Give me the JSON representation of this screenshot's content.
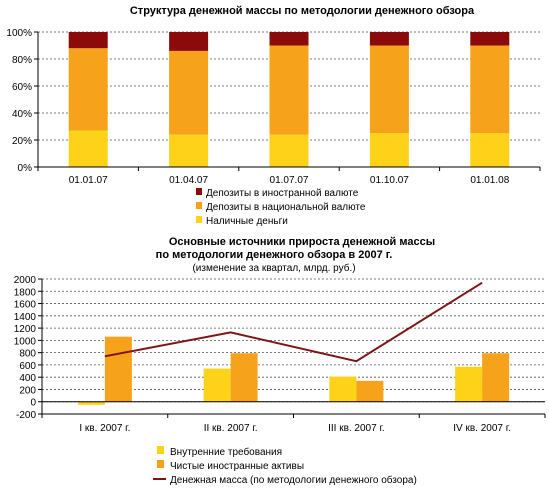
{
  "colors": {
    "foreign_deposits": "#8B0A0A",
    "national_deposits": "#F7A21B",
    "cash": "#FFD21A",
    "domestic_claims": "#FFD21A",
    "net_foreign_assets": "#F7A21B",
    "money_supply": "#7F1417",
    "grid": "#555555",
    "axis": "#000000"
  },
  "chart_data": [
    {
      "type": "bar",
      "stacked": true,
      "title": "Структура денежной массы по методологии денежного обзора",
      "categories": [
        "01.01.07",
        "01.04.07",
        "01.07.07",
        "01.10.07",
        "01.01.08"
      ],
      "series": [
        {
          "name": "Наличные деньги",
          "values": [
            27,
            24,
            24,
            25,
            25
          ]
        },
        {
          "name": "Депозиты в национальной валюте",
          "values": [
            61,
            62,
            66,
            65,
            65
          ]
        },
        {
          "name": "Депозиты в иностранной валюте",
          "values": [
            12,
            14,
            10,
            10,
            10
          ]
        }
      ],
      "legend_order": [
        "Депозиты в иностранной валюте",
        "Депозиты в национальной валюте",
        "Наличные деньги"
      ],
      "ylim": [
        0,
        100
      ],
      "yticks": [
        "0%",
        "20%",
        "40%",
        "60%",
        "80%",
        "100%"
      ],
      "grid": true,
      "legend_position": "bottom"
    },
    {
      "type": "bar+line",
      "title": "Основные источники прироста денежной массы по методологии денежного обзора в 2007 г.",
      "title_lines": [
        "Основные источники прироста денежной массы",
        "по методологии денежного обзора в 2007 г."
      ],
      "subtitle": "(изменение за квартал, млрд. руб.)",
      "categories": [
        "I кв. 2007 г.",
        "II кв. 2007 г.",
        "III кв. 2007 г.",
        "IV кв. 2007 г."
      ],
      "series": [
        {
          "name": "Внутренние требования",
          "type": "bar",
          "values": [
            -50,
            540,
            410,
            570
          ]
        },
        {
          "name": "Чистые иностранные активы",
          "type": "bar",
          "values": [
            1060,
            790,
            340,
            790
          ]
        },
        {
          "name": "Денежная масса (по методологии денежного обзора)",
          "type": "line",
          "values": [
            740,
            1130,
            660,
            1940
          ]
        }
      ],
      "ylim": [
        -200,
        2000
      ],
      "yticks": [
        "-200",
        "0",
        "200",
        "400",
        "600",
        "800",
        "1000",
        "1200",
        "1400",
        "1600",
        "1800",
        "2000"
      ],
      "grid": true,
      "legend_position": "bottom"
    }
  ]
}
